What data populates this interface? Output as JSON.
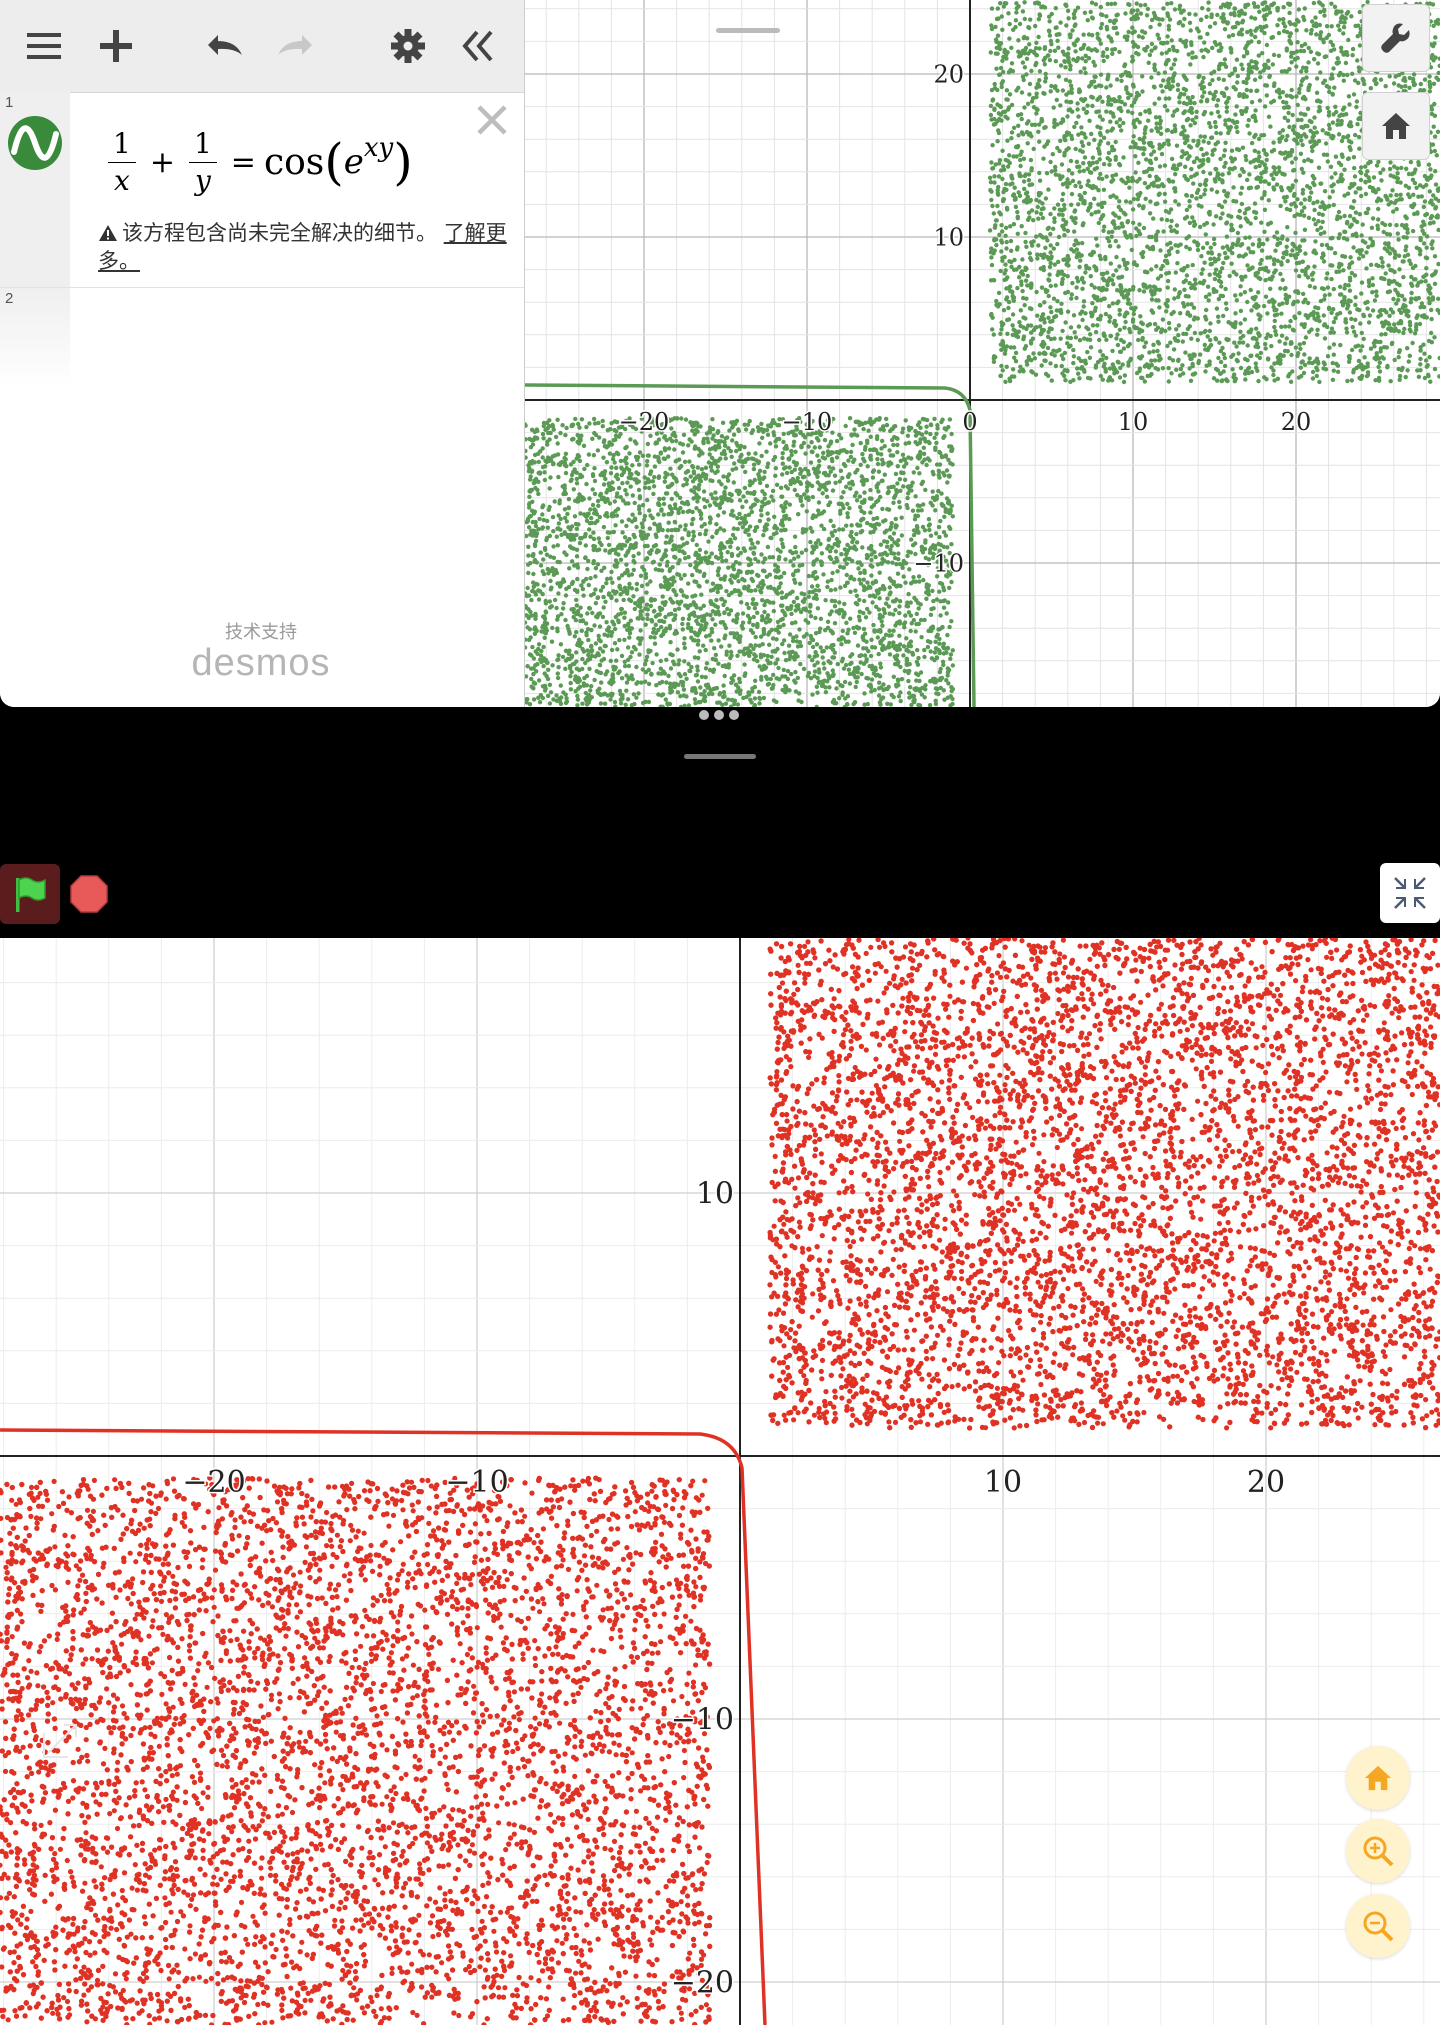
{
  "sidebar": {
    "toolbar": {
      "menu_icon": "hamburger-menu-icon",
      "add_icon": "plus-icon",
      "undo_icon": "undo-icon",
      "redo_icon": "redo-icon",
      "settings_icon": "gear-icon",
      "collapse_icon": "double-chevron-left-icon"
    },
    "expressions": [
      {
        "index": "1",
        "lhs1_num": "1",
        "lhs1_den": "x",
        "plus": "+",
        "lhs2_num": "1",
        "lhs2_den": "y",
        "eq": "=",
        "func": "cos",
        "base": "e",
        "exponent": "xy",
        "warning": "该方程包含尚未完全解决的细节。",
        "learn_more": "了解更多。"
      },
      {
        "index": "2"
      }
    ],
    "credit_small": "技术支持",
    "credit_brand": "desmos"
  },
  "graph_top": {
    "x_ticks": [
      "−20",
      "−10",
      "0",
      "10",
      "20"
    ],
    "y_ticks": [
      "20",
      "10",
      "−10"
    ],
    "color": "#5b9a55"
  },
  "graph_bottom": {
    "x_ticks": [
      "−20",
      "−10",
      "10",
      "20"
    ],
    "y_ticks": [
      "10",
      "−10",
      "−20"
    ],
    "color": "#e03224"
  },
  "colors": {
    "accent_zoom": "#fff3cd",
    "zoom_icon": "#f5a623"
  }
}
